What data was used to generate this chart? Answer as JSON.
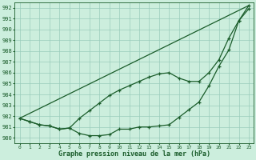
{
  "title": "Graphe pression niveau de la mer (hPa)",
  "background_color": "#cceedd",
  "grid_color": "#99ccbb",
  "line_color": "#1a5c2a",
  "xlim": [
    -0.5,
    23.5
  ],
  "ylim": [
    979.5,
    992.5
  ],
  "yticks": [
    980,
    981,
    982,
    983,
    984,
    985,
    986,
    987,
    988,
    989,
    990,
    991,
    992
  ],
  "xticks": [
    0,
    1,
    2,
    3,
    4,
    5,
    6,
    7,
    8,
    9,
    10,
    11,
    12,
    13,
    14,
    15,
    16,
    17,
    18,
    19,
    20,
    21,
    22,
    23
  ],
  "line1_x": [
    0,
    1,
    2,
    3,
    4,
    5,
    6,
    7,
    8,
    9,
    10,
    11,
    12,
    13,
    14,
    15,
    16,
    17,
    18,
    19,
    20,
    21,
    22,
    23
  ],
  "line1_y": [
    981.8,
    981.5,
    981.2,
    981.1,
    980.8,
    980.9,
    980.4,
    980.2,
    980.2,
    980.3,
    980.8,
    980.8,
    981.0,
    981.0,
    981.1,
    981.2,
    981.9,
    982.6,
    983.3,
    984.8,
    986.6,
    988.1,
    990.8,
    991.9
  ],
  "line2_x": [
    0,
    1,
    2,
    3,
    4,
    5,
    6,
    7,
    8,
    9,
    10,
    11,
    12,
    13,
    14,
    15,
    16,
    17,
    18,
    19,
    20,
    21,
    22,
    23
  ],
  "line2_y": [
    981.8,
    981.5,
    981.2,
    981.1,
    980.8,
    980.9,
    981.8,
    982.5,
    983.2,
    983.9,
    984.4,
    984.8,
    985.2,
    985.6,
    985.9,
    986.0,
    985.5,
    985.2,
    985.2,
    986.0,
    987.2,
    989.2,
    990.8,
    992.2
  ],
  "line3_x": [
    0,
    23
  ],
  "line3_y": [
    981.8,
    992.2
  ]
}
